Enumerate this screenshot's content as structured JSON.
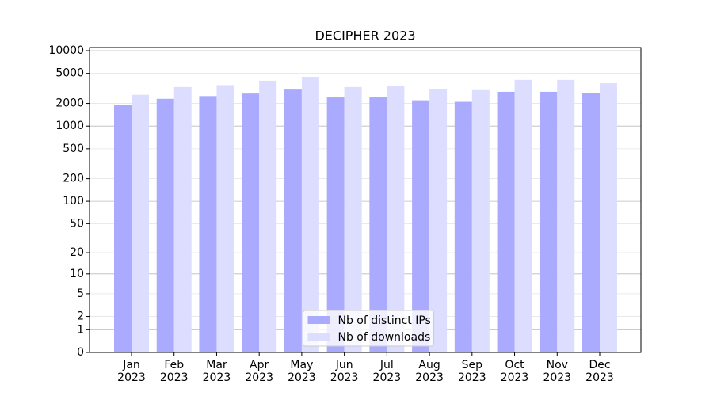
{
  "chart_data": {
    "type": "bar",
    "title": "DECIPHER 2023",
    "categories": [
      "Jan\n2023",
      "Feb\n2023",
      "Mar\n2023",
      "Apr\n2023",
      "May\n2023",
      "Jun\n2023",
      "Jul\n2023",
      "Aug\n2023",
      "Sep\n2023",
      "Oct\n2023",
      "Nov\n2023",
      "Dec\n2023"
    ],
    "series": [
      {
        "name": "Nb of distinct IPs",
        "color": "#aaaaff",
        "values": [
          1900,
          2300,
          2500,
          2700,
          3050,
          2400,
          2400,
          2200,
          2100,
          2850,
          2850,
          2750
        ]
      },
      {
        "name": "Nb of downloads",
        "color": "#ddddff",
        "values": [
          2600,
          3300,
          3500,
          4000,
          4500,
          3300,
          3450,
          3100,
          3000,
          4100,
          4100,
          3700
        ]
      }
    ],
    "yscale": "log1p",
    "ylim": [
      0,
      10000
    ],
    "yticks": [
      0,
      1,
      2,
      5,
      10,
      20,
      50,
      100,
      200,
      500,
      1000,
      2000,
      5000,
      10000
    ],
    "grid": true,
    "legend": "lower center"
  }
}
